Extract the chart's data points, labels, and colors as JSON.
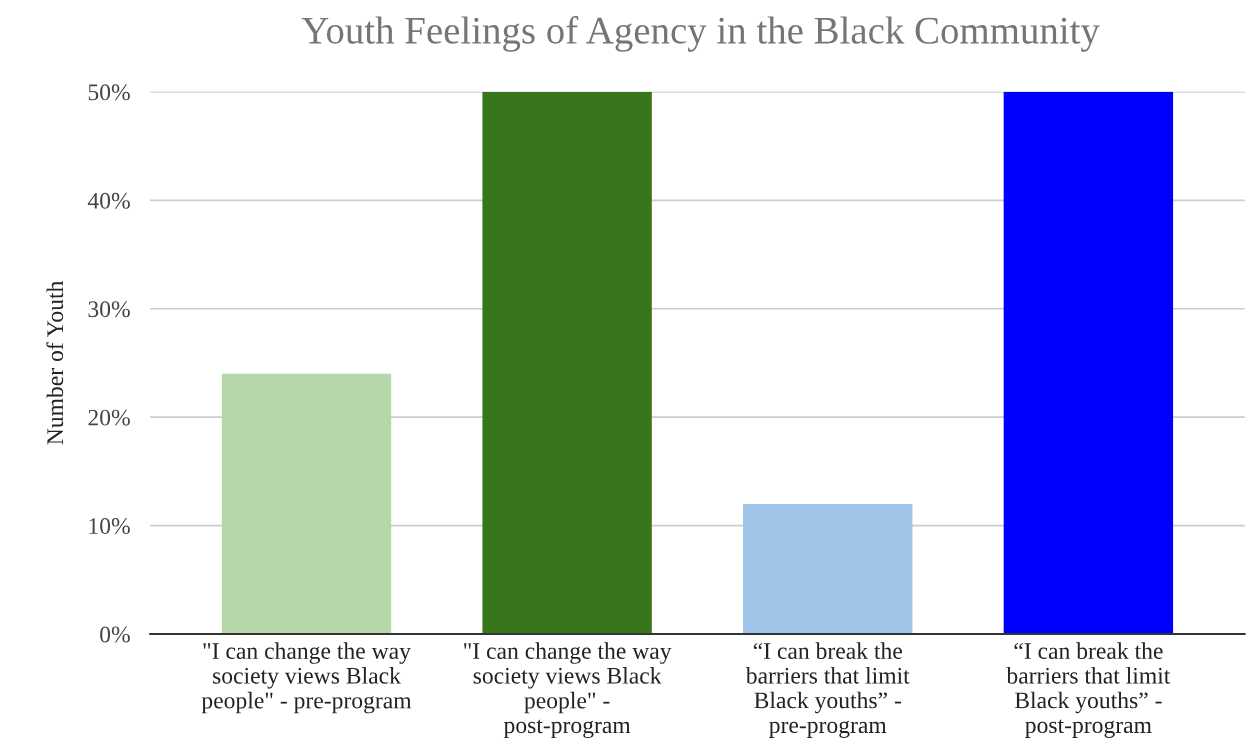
{
  "chart_data": {
    "type": "bar",
    "title": "Youth Feelings of Agency in the Black Community",
    "ylabel": "Number of Youth",
    "categories": [
      "\"I can change the way society views Black people\" - pre-program",
      "\"I can change the way society views Black people\" - post-program",
      "“I can break the barriers that limit Black youths” - pre-program",
      "“I can break the barriers that limit Black youths” - post-program"
    ],
    "values": [
      24,
      50,
      12,
      50
    ],
    "colors": [
      "#b6d7a8",
      "#38761d",
      "#9fc5e8",
      "#0000ff"
    ],
    "ylim": [
      0,
      50
    ],
    "yticks": [
      {
        "value": 0,
        "label": "0%"
      },
      {
        "value": 10,
        "label": "10%"
      },
      {
        "value": 20,
        "label": "20%"
      },
      {
        "value": 30,
        "label": "30%"
      },
      {
        "value": 40,
        "label": "40%"
      },
      {
        "value": 50,
        "label": "50%"
      }
    ],
    "grid": "y",
    "legend": false
  }
}
